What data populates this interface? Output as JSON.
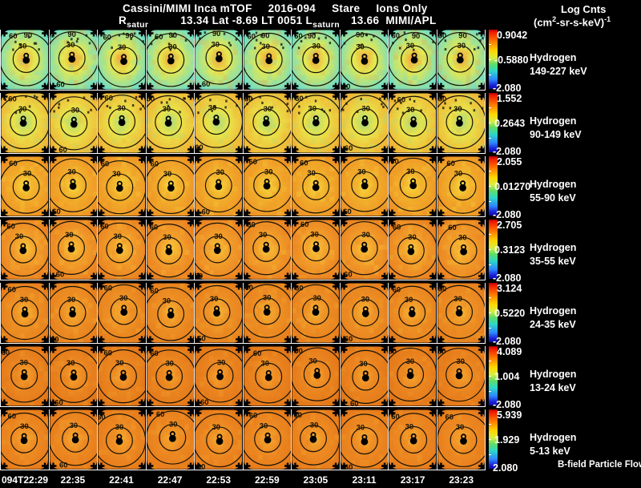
{
  "header": {
    "title": "Cassini/MIMI Inca mTOF",
    "date": "2016-094",
    "mode": "Stare",
    "filter": "Ions Only",
    "ephemeris": {
      "p1": "R",
      "sub1": "satur",
      "p2": "13.34 Lat -8.69 LT 0051 L",
      "sub2": "saturn",
      "p3": "13.66  MIMI/APL"
    },
    "units": {
      "line1": "Log Cnts",
      "open": "(cm",
      "sup1": "2",
      "body": "-sr-s-keV)",
      "sup2": "-1"
    }
  },
  "footer": {
    "legend": "B-field Particle Flow"
  },
  "ring_labels": [
    "30",
    "60",
    "90"
  ],
  "columns": [
    "094T22:29",
    "22:35",
    "22:41",
    "22:47",
    "22:53",
    "22:59",
    "23:05",
    "23:11",
    "23:17",
    "23:23"
  ],
  "colorbar": {
    "gradient": [
      [
        "#b40000",
        0
      ],
      [
        "#f01800",
        4
      ],
      [
        "#ff7a00",
        20
      ],
      [
        "#ffd800",
        36
      ],
      [
        "#d8ee3e",
        48
      ],
      [
        "#62dc66",
        58
      ],
      [
        "#2cd8c8",
        70
      ],
      [
        "#2e86ff",
        84
      ],
      [
        "#1820d8",
        94
      ],
      [
        "#0a0aa0",
        100
      ]
    ]
  },
  "rows": [
    {
      "species": "Hydrogen",
      "energy": "149-227 keV",
      "max": "0.9042",
      "mid": "-0.5880",
      "min": "-2.080",
      "palette": [
        "#f0a038",
        "#e6e850",
        "#6fdec6"
      ]
    },
    {
      "species": "Hydrogen",
      "energy": "90-149 keV",
      "max": "1.552",
      "mid": "0.2643",
      "min": "-2.080",
      "palette": [
        "#a9da7e",
        "#e9e44b",
        "#f1b233"
      ]
    },
    {
      "species": "Hydrogen",
      "energy": "55-90 keV",
      "max": "2.055",
      "mid": "0.01270",
      "min": "-2.080",
      "palette": [
        "#f6d93e",
        "#f2b02c",
        "#ee9224"
      ]
    },
    {
      "species": "Hydrogen",
      "energy": "35-55 keV",
      "max": "2.705",
      "mid": "0.3123",
      "min": "-2.080",
      "palette": [
        "#f8c83a",
        "#f2a02c",
        "#ea8020"
      ]
    },
    {
      "species": "Hydrogen",
      "energy": "24-35 keV",
      "max": "3.124",
      "mid": "0.5220",
      "min": "-2.080",
      "palette": [
        "#f6b434",
        "#ee9226",
        "#e67e1c"
      ]
    },
    {
      "species": "Hydrogen",
      "energy": "13-24 keV",
      "max": "4.089",
      "mid": "1.004",
      "min": "-2.080",
      "palette": [
        "#f4a52e",
        "#ec8822",
        "#e27618"
      ]
    },
    {
      "species": "Hydrogen",
      "energy": "5-13 keV",
      "max": "5.939",
      "mid": "1.929",
      "min": "2.080",
      "palette": [
        "#f4aa30",
        "#ee8c24",
        "#e67a1a"
      ]
    }
  ],
  "chart_data": {
    "type": "heatmap",
    "title": "Cassini/MIMI Inca mTOF 2016-094 Stare Ions Only",
    "subtitle": "R_satur 13.34 Lat -8.69 LT 0051 L_saturn 13.66 MIMI/APL",
    "units": "Log Cnts (cm^2-sr-s-keV)^-1",
    "colormap": "rainbow",
    "x": [
      "094T22:29",
      "22:35",
      "22:41",
      "22:47",
      "22:53",
      "22:59",
      "23:05",
      "23:11",
      "23:17",
      "23:23"
    ],
    "angular_rings_deg": [
      30,
      60,
      90
    ],
    "legend": "B-field Particle Flow",
    "series": [
      {
        "name": "Hydrogen 149-227 keV",
        "scale_max": 0.9042,
        "scale_mid": -0.588,
        "scale_min": -2.08
      },
      {
        "name": "Hydrogen 90-149 keV",
        "scale_max": 1.552,
        "scale_mid": 0.2643,
        "scale_min": -2.08
      },
      {
        "name": "Hydrogen 55-90 keV",
        "scale_max": 2.055,
        "scale_mid": 0.0127,
        "scale_min": -2.08
      },
      {
        "name": "Hydrogen 35-55 keV",
        "scale_max": 2.705,
        "scale_mid": 0.3123,
        "scale_min": -2.08
      },
      {
        "name": "Hydrogen 24-35 keV",
        "scale_max": 3.124,
        "scale_mid": 0.522,
        "scale_min": -2.08
      },
      {
        "name": "Hydrogen 13-24 keV",
        "scale_max": 4.089,
        "scale_mid": 1.004,
        "scale_min": -2.08
      },
      {
        "name": "Hydrogen 5-13 keV",
        "scale_max": 5.939,
        "scale_mid": 1.929,
        "scale_min": 2.08
      }
    ]
  }
}
